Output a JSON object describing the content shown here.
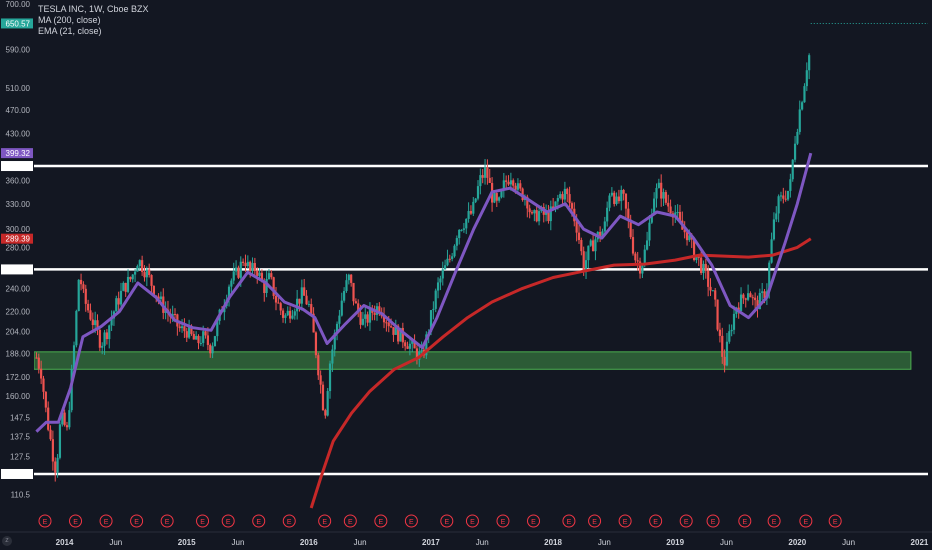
{
  "legend": {
    "title": "TESLA INC, 1W, Cboe BZX",
    "ma": "MA (200, close)",
    "ema": "EMA (21, close)"
  },
  "colors": {
    "background": "#131722",
    "candle_up": "#26a69a",
    "candle_down": "#ef5350",
    "ma": "#c62828",
    "ema": "#7e57c2",
    "hline": "#ffffff",
    "zone": "#4caf50",
    "earnings": "#f23645"
  },
  "chart_data": {
    "type": "candlestick",
    "title": "TESLA INC, 1W, Cboe BZX",
    "y_scale": "log",
    "ylim": [
      105,
      700
    ],
    "xlim": [
      2013.75,
      2021.07
    ],
    "y_ticks": [
      700,
      650.57,
      590,
      510,
      470,
      430,
      399.32,
      380.39,
      360,
      330,
      300,
      289.39,
      280,
      257.76,
      240,
      220,
      204,
      188,
      172,
      160,
      147.5,
      137.5,
      127.5,
      119.34,
      110.5
    ],
    "x_ticks": [
      {
        "label": "2014",
        "x": 2014.0,
        "year": true
      },
      {
        "label": "Jun",
        "x": 2014.42
      },
      {
        "label": "2015",
        "x": 2015.0,
        "year": true
      },
      {
        "label": "Jun",
        "x": 2015.42
      },
      {
        "label": "2016",
        "x": 2016.0,
        "year": true
      },
      {
        "label": "Jun",
        "x": 2016.42
      },
      {
        "label": "2017",
        "x": 2017.0,
        "year": true
      },
      {
        "label": "Jun",
        "x": 2017.42
      },
      {
        "label": "2018",
        "x": 2018.0,
        "year": true
      },
      {
        "label": "Jun",
        "x": 2018.42
      },
      {
        "label": "2019",
        "x": 2019.0,
        "year": true
      },
      {
        "label": "Jun",
        "x": 2019.42
      },
      {
        "label": "2020",
        "x": 2020.0,
        "year": true
      },
      {
        "label": "Jun",
        "x": 2020.42
      },
      {
        "label": "2021",
        "x": 2021.0,
        "year": true
      }
    ],
    "horizontal_levels": [
      380.39,
      257.76,
      119.34
    ],
    "support_zone": {
      "low": 177,
      "high": 189,
      "x_start": 2013.75,
      "x_end": 2020.93
    },
    "price_tags": [
      {
        "value": 650.57,
        "label": "650.57",
        "color": "#26a69a"
      },
      {
        "value": 399.32,
        "label": "399.32",
        "color": "#7e57c2"
      },
      {
        "value": 380.39,
        "label": "380.39",
        "color": "#ffffff"
      },
      {
        "value": 289.39,
        "label": "289.39",
        "color": "#c62828"
      },
      {
        "value": 257.76,
        "label": "257.76",
        "color": "#ffffff"
      },
      {
        "value": 119.34,
        "label": "119.34",
        "color": "#ffffff"
      }
    ],
    "earnings_label": "E",
    "earnings": [
      2013.84,
      2014.09,
      2014.34,
      2014.59,
      2014.84,
      2015.13,
      2015.34,
      2015.59,
      2015.84,
      2016.13,
      2016.34,
      2016.59,
      2016.84,
      2017.13,
      2017.34,
      2017.59,
      2017.84,
      2018.13,
      2018.34,
      2018.59,
      2018.84,
      2019.09,
      2019.31,
      2019.57,
      2019.81,
      2020.07,
      2020.31
    ],
    "close_series": [
      [
        2013.77,
        185
      ],
      [
        2013.81,
        175
      ],
      [
        2013.85,
        150
      ],
      [
        2013.9,
        130
      ],
      [
        2013.93,
        121
      ],
      [
        2013.97,
        148
      ],
      [
        2014.02,
        140
      ],
      [
        2014.08,
        195
      ],
      [
        2014.12,
        255
      ],
      [
        2014.16,
        230
      ],
      [
        2014.22,
        215
      ],
      [
        2014.3,
        195
      ],
      [
        2014.35,
        205
      ],
      [
        2014.42,
        225
      ],
      [
        2014.48,
        240
      ],
      [
        2014.55,
        250
      ],
      [
        2014.6,
        268
      ],
      [
        2014.67,
        255
      ],
      [
        2014.73,
        240
      ],
      [
        2014.8,
        225
      ],
      [
        2014.88,
        215
      ],
      [
        2014.95,
        205
      ],
      [
        2015.0,
        205
      ],
      [
        2015.08,
        195
      ],
      [
        2015.13,
        200
      ],
      [
        2015.2,
        192
      ],
      [
        2015.28,
        220
      ],
      [
        2015.35,
        245
      ],
      [
        2015.42,
        255
      ],
      [
        2015.47,
        270
      ],
      [
        2015.52,
        255
      ],
      [
        2015.57,
        260
      ],
      [
        2015.63,
        240
      ],
      [
        2015.68,
        250
      ],
      [
        2015.73,
        230
      ],
      [
        2015.8,
        215
      ],
      [
        2015.88,
        225
      ],
      [
        2015.95,
        235
      ],
      [
        2016.0,
        225
      ],
      [
        2016.05,
        195
      ],
      [
        2016.1,
        165
      ],
      [
        2016.13,
        148
      ],
      [
        2016.17,
        180
      ],
      [
        2016.22,
        205
      ],
      [
        2016.28,
        235
      ],
      [
        2016.33,
        250
      ],
      [
        2016.38,
        225
      ],
      [
        2016.45,
        210
      ],
      [
        2016.52,
        220
      ],
      [
        2016.58,
        225
      ],
      [
        2016.63,
        215
      ],
      [
        2016.7,
        205
      ],
      [
        2016.76,
        200
      ],
      [
        2016.82,
        195
      ],
      [
        2016.88,
        188
      ],
      [
        2016.93,
        185
      ],
      [
        2017.0,
        215
      ],
      [
        2017.05,
        240
      ],
      [
        2017.1,
        255
      ],
      [
        2017.16,
        270
      ],
      [
        2017.22,
        300
      ],
      [
        2017.28,
        310
      ],
      [
        2017.34,
        320
      ],
      [
        2017.4,
        360
      ],
      [
        2017.45,
        375
      ],
      [
        2017.5,
        340
      ],
      [
        2017.55,
        325
      ],
      [
        2017.6,
        355
      ],
      [
        2017.66,
        370
      ],
      [
        2017.72,
        345
      ],
      [
        2017.78,
        340
      ],
      [
        2017.83,
        310
      ],
      [
        2017.88,
        320
      ],
      [
        2017.94,
        315
      ],
      [
        2018.0,
        320
      ],
      [
        2018.05,
        340
      ],
      [
        2018.1,
        345
      ],
      [
        2018.15,
        325
      ],
      [
        2018.2,
        300
      ],
      [
        2018.25,
        260
      ],
      [
        2018.29,
        275
      ],
      [
        2018.35,
        290
      ],
      [
        2018.42,
        300
      ],
      [
        2018.47,
        355
      ],
      [
        2018.52,
        330
      ],
      [
        2018.57,
        340
      ],
      [
        2018.62,
        305
      ],
      [
        2018.67,
        270
      ],
      [
        2018.72,
        260
      ],
      [
        2018.77,
        285
      ],
      [
        2018.82,
        340
      ],
      [
        2018.87,
        350
      ],
      [
        2018.93,
        330
      ],
      [
        2019.0,
        320
      ],
      [
        2019.05,
        300
      ],
      [
        2019.1,
        295
      ],
      [
        2019.15,
        275
      ],
      [
        2019.2,
        265
      ],
      [
        2019.27,
        245
      ],
      [
        2019.32,
        230
      ],
      [
        2019.37,
        195
      ],
      [
        2019.4,
        180
      ],
      [
        2019.45,
        205
      ],
      [
        2019.5,
        225
      ],
      [
        2019.55,
        230
      ],
      [
        2019.6,
        240
      ],
      [
        2019.65,
        225
      ],
      [
        2019.7,
        230
      ],
      [
        2019.75,
        240
      ],
      [
        2019.8,
        300
      ],
      [
        2019.84,
        330
      ],
      [
        2019.89,
        340
      ],
      [
        2019.94,
        350
      ],
      [
        2019.98,
        420
      ],
      [
        2020.02,
        470
      ],
      [
        2020.05,
        510
      ],
      [
        2020.08,
        560
      ],
      [
        2020.1,
        580
      ],
      [
        2020.11,
        650.57
      ]
    ],
    "ma_series": [
      [
        2016.02,
        105
      ],
      [
        2016.1,
        118
      ],
      [
        2016.2,
        135
      ],
      [
        2016.35,
        150
      ],
      [
        2016.5,
        163
      ],
      [
        2016.7,
        177
      ],
      [
        2016.9,
        185
      ],
      [
        2017.1,
        200
      ],
      [
        2017.3,
        215
      ],
      [
        2017.5,
        228
      ],
      [
        2017.75,
        240
      ],
      [
        2018.0,
        250
      ],
      [
        2018.25,
        256
      ],
      [
        2018.5,
        262
      ],
      [
        2018.75,
        263
      ],
      [
        2019.0,
        267
      ],
      [
        2019.2,
        272
      ],
      [
        2019.4,
        271
      ],
      [
        2019.6,
        270
      ],
      [
        2019.8,
        272
      ],
      [
        2020.0,
        280
      ],
      [
        2020.11,
        289.39
      ]
    ],
    "ema_series": [
      [
        2013.77,
        140
      ],
      [
        2013.85,
        145
      ],
      [
        2013.95,
        145
      ],
      [
        2014.05,
        165
      ],
      [
        2014.15,
        200
      ],
      [
        2014.3,
        208
      ],
      [
        2014.45,
        220
      ],
      [
        2014.6,
        245
      ],
      [
        2014.75,
        232
      ],
      [
        2014.9,
        213
      ],
      [
        2015.05,
        207
      ],
      [
        2015.2,
        205
      ],
      [
        2015.35,
        232
      ],
      [
        2015.5,
        255
      ],
      [
        2015.65,
        245
      ],
      [
        2015.8,
        228
      ],
      [
        2015.95,
        222
      ],
      [
        2016.05,
        215
      ],
      [
        2016.15,
        195
      ],
      [
        2016.3,
        210
      ],
      [
        2016.45,
        225
      ],
      [
        2016.6,
        218
      ],
      [
        2016.75,
        205
      ],
      [
        2016.93,
        192
      ],
      [
        2017.05,
        215
      ],
      [
        2017.2,
        255
      ],
      [
        2017.35,
        300
      ],
      [
        2017.5,
        345
      ],
      [
        2017.65,
        350
      ],
      [
        2017.8,
        335
      ],
      [
        2017.95,
        320
      ],
      [
        2018.1,
        330
      ],
      [
        2018.25,
        300
      ],
      [
        2018.4,
        290
      ],
      [
        2018.55,
        315
      ],
      [
        2018.7,
        305
      ],
      [
        2018.85,
        320
      ],
      [
        2019.0,
        315
      ],
      [
        2019.15,
        290
      ],
      [
        2019.3,
        262
      ],
      [
        2019.45,
        225
      ],
      [
        2019.6,
        215
      ],
      [
        2019.75,
        232
      ],
      [
        2019.9,
        285
      ],
      [
        2020.0,
        330
      ],
      [
        2020.11,
        399.32
      ]
    ]
  }
}
